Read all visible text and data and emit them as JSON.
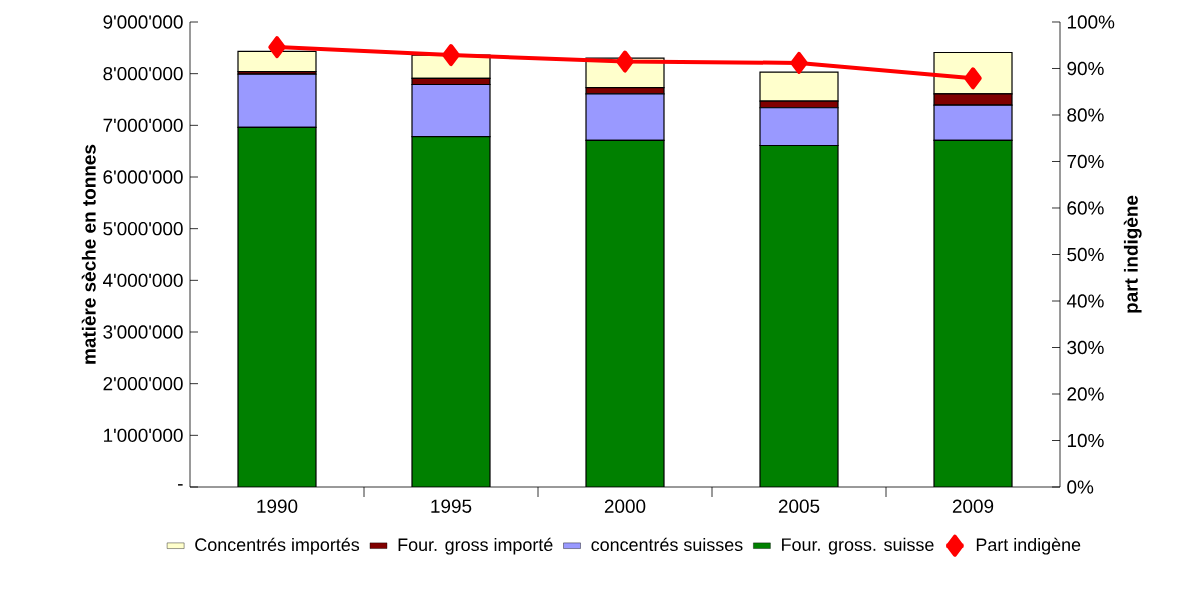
{
  "chart_data": {
    "type": "bar",
    "stacked": true,
    "ylabel": "matière sèche en tonnes",
    "y2label": "part indigène",
    "categories": [
      "1990",
      "1995",
      "2000",
      "2005",
      "2009"
    ],
    "series": [
      {
        "name": "Four. gross. suisse",
        "color": "#008000",
        "values": [
          6960000,
          6780000,
          6710000,
          6610000,
          6710000
        ]
      },
      {
        "name": "concentrés suisses",
        "color": "#9999ff",
        "values": [
          1030000,
          1010000,
          900000,
          730000,
          680000
        ]
      },
      {
        "name": "Four. gross importé",
        "color": "#800000",
        "values": [
          50000,
          120000,
          120000,
          130000,
          220000
        ]
      },
      {
        "name": "Concentrés importés",
        "color": "#ffffcc",
        "values": [
          390000,
          450000,
          570000,
          560000,
          800000
        ]
      },
      {
        "name": "Part indigène",
        "type": "line",
        "axis": "y2",
        "marker": "diamond",
        "color": "#ff0000",
        "values": [
          94.6,
          92.9,
          91.5,
          91.2,
          87.9
        ]
      }
    ],
    "ylim": [
      0,
      9000000
    ],
    "yticks": [
      {
        "value": 0,
        "label": "-"
      },
      {
        "value": 1000000,
        "label": "1'000'000"
      },
      {
        "value": 2000000,
        "label": "2'000'000"
      },
      {
        "value": 3000000,
        "label": "3'000'000"
      },
      {
        "value": 4000000,
        "label": "4'000'000"
      },
      {
        "value": 5000000,
        "label": "5'000'000"
      },
      {
        "value": 6000000,
        "label": "6'000'000"
      },
      {
        "value": 7000000,
        "label": "7'000'000"
      },
      {
        "value": 8000000,
        "label": "8'000'000"
      },
      {
        "value": 9000000,
        "label": "9'000'000"
      }
    ],
    "y2lim": [
      0,
      100
    ],
    "y2ticks": [
      {
        "value": 0,
        "label": "0%"
      },
      {
        "value": 10,
        "label": "10%"
      },
      {
        "value": 20,
        "label": "20%"
      },
      {
        "value": 30,
        "label": "30%"
      },
      {
        "value": 40,
        "label": "40%"
      },
      {
        "value": 50,
        "label": "50%"
      },
      {
        "value": 60,
        "label": "60%"
      },
      {
        "value": 70,
        "label": "70%"
      },
      {
        "value": 80,
        "label": "80%"
      },
      {
        "value": 90,
        "label": "90%"
      },
      {
        "value": 100,
        "label": "100%"
      }
    ],
    "legend": "bottom",
    "grid": false
  }
}
